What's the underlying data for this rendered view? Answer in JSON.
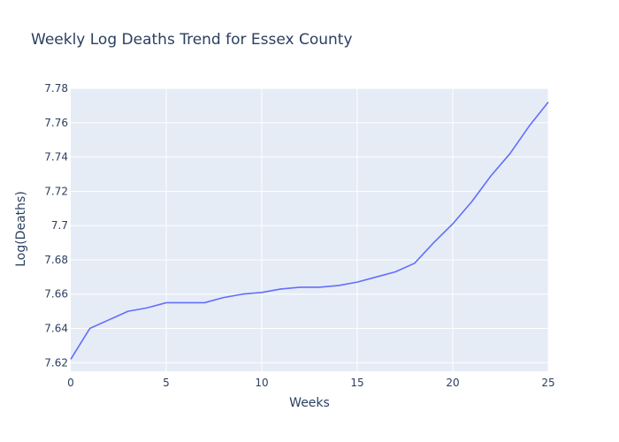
{
  "chart_data": {
    "type": "line",
    "title": "Weekly Log Deaths Trend for Essex County",
    "xlabel": "Weeks",
    "ylabel": "Log(Deaths)",
    "xlim": [
      0,
      25
    ],
    "ylim": [
      7.615,
      7.78
    ],
    "x_ticks": [
      0,
      5,
      10,
      15,
      20,
      25
    ],
    "x_tick_labels": [
      "0",
      "5",
      "10",
      "15",
      "20",
      "25"
    ],
    "y_ticks": [
      7.62,
      7.64,
      7.66,
      7.68,
      7.7,
      7.72,
      7.74,
      7.76,
      7.78
    ],
    "y_tick_labels": [
      "7.62",
      "7.64",
      "7.66",
      "7.68",
      "7.7",
      "7.72",
      "7.74",
      "7.76",
      "7.78"
    ],
    "grid": true,
    "series": [
      {
        "color": "#636efa",
        "x": [
          0,
          1,
          2,
          3,
          4,
          5,
          6,
          7,
          8,
          9,
          10,
          11,
          12,
          13,
          14,
          15,
          16,
          17,
          18,
          19,
          20,
          21,
          22,
          23,
          24,
          25
        ],
        "y": [
          7.622,
          7.64,
          7.645,
          7.65,
          7.652,
          7.655,
          7.655,
          7.655,
          7.658,
          7.66,
          7.661,
          7.663,
          7.664,
          7.664,
          7.665,
          7.667,
          7.67,
          7.673,
          7.678,
          7.69,
          7.701,
          7.714,
          7.729,
          7.742,
          7.758,
          7.772
        ]
      }
    ]
  },
  "colors": {
    "plot_bg": "#e5ecf6",
    "grid": "#ffffff",
    "text": "#2a3f5f",
    "line": "#636efa"
  }
}
